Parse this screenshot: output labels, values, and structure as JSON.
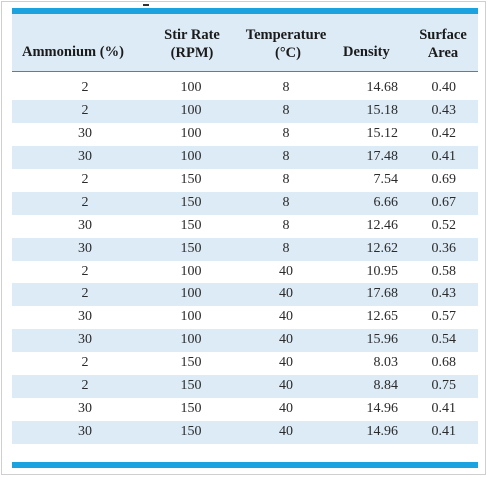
{
  "table": {
    "headers": {
      "ammonium": "Ammonium (%)",
      "stir_rate_line1": "Stir Rate",
      "stir_rate_line2": "(RPM)",
      "temperature_line1": "Temperature",
      "temperature_line2": "(°C)",
      "density": "Density",
      "surface_area_line1": "Surface",
      "surface_area_line2": "Area"
    },
    "rows": [
      {
        "ammonium": "2",
        "stir_rate": "100",
        "temperature": "8",
        "density": "14.68",
        "surface_area": "0.40"
      },
      {
        "ammonium": "2",
        "stir_rate": "100",
        "temperature": "8",
        "density": "15.18",
        "surface_area": "0.43"
      },
      {
        "ammonium": "30",
        "stir_rate": "100",
        "temperature": "8",
        "density": "15.12",
        "surface_area": "0.42"
      },
      {
        "ammonium": "30",
        "stir_rate": "100",
        "temperature": "8",
        "density": "17.48",
        "surface_area": "0.41"
      },
      {
        "ammonium": "2",
        "stir_rate": "150",
        "temperature": "8",
        "density": "7.54",
        "surface_area": "0.69"
      },
      {
        "ammonium": "2",
        "stir_rate": "150",
        "temperature": "8",
        "density": "6.66",
        "surface_area": "0.67"
      },
      {
        "ammonium": "30",
        "stir_rate": "150",
        "temperature": "8",
        "density": "12.46",
        "surface_area": "0.52"
      },
      {
        "ammonium": "30",
        "stir_rate": "150",
        "temperature": "8",
        "density": "12.62",
        "surface_area": "0.36"
      },
      {
        "ammonium": "2",
        "stir_rate": "100",
        "temperature": "40",
        "density": "10.95",
        "surface_area": "0.58"
      },
      {
        "ammonium": "2",
        "stir_rate": "100",
        "temperature": "40",
        "density": "17.68",
        "surface_area": "0.43"
      },
      {
        "ammonium": "30",
        "stir_rate": "100",
        "temperature": "40",
        "density": "12.65",
        "surface_area": "0.57"
      },
      {
        "ammonium": "30",
        "stir_rate": "100",
        "temperature": "40",
        "density": "15.96",
        "surface_area": "0.54"
      },
      {
        "ammonium": "2",
        "stir_rate": "150",
        "temperature": "40",
        "density": "8.03",
        "surface_area": "0.68"
      },
      {
        "ammonium": "2",
        "stir_rate": "150",
        "temperature": "40",
        "density": "8.84",
        "surface_area": "0.75"
      },
      {
        "ammonium": "30",
        "stir_rate": "150",
        "temperature": "40",
        "density": "14.96",
        "surface_area": "0.41"
      },
      {
        "ammonium": "30",
        "stir_rate": "150",
        "temperature": "40",
        "density": "14.96",
        "surface_area": "0.41"
      }
    ]
  },
  "colors": {
    "accent_bar": "#1aa3df",
    "row_shade": "#dcebf6"
  }
}
